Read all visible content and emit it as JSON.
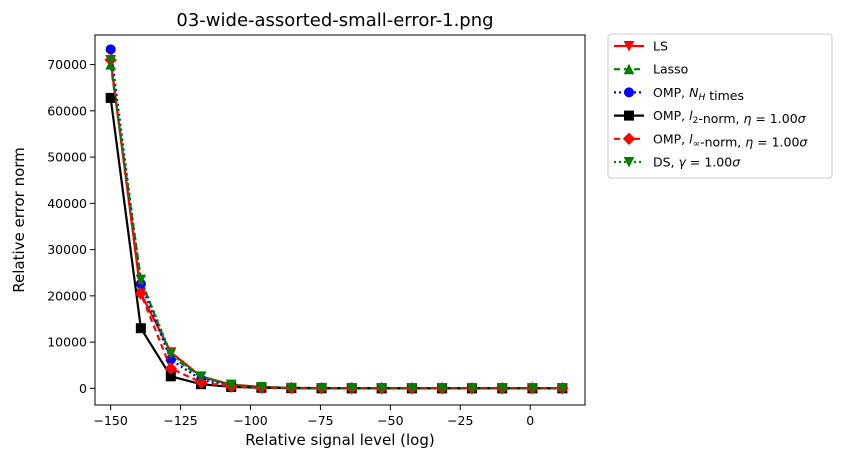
{
  "chart_data": {
    "type": "line",
    "title": "03-wide-assorted-small-error-1.png",
    "xlabel": "Relative signal level (log)",
    "ylabel": "Relative error norm",
    "xlim": [
      -155.6,
      19.6
    ],
    "ylim": [
      -3600,
      76400
    ],
    "xticks": [
      -150,
      -125,
      -100,
      -75,
      -50,
      -25,
      0
    ],
    "yticks": [
      0,
      10000,
      20000,
      30000,
      40000,
      50000,
      60000,
      70000
    ],
    "xtick_labels": [
      "−150",
      "−125",
      "−100",
      "−75",
      "−50",
      "−25",
      "0"
    ],
    "ytick_labels": [
      "0",
      "10000",
      "20000",
      "30000",
      "40000",
      "50000",
      "60000",
      "70000"
    ],
    "grid": false,
    "legend_position": "outside-upper-right",
    "x": [
      -150.0,
      -139.2,
      -128.5,
      -117.7,
      -106.9,
      -96.1,
      -85.4,
      -74.6,
      -63.8,
      -53.1,
      -42.3,
      -31.5,
      -20.8,
      -10.0,
      0.8,
      11.5
    ],
    "series": [
      {
        "name": "LS",
        "color": "#ff0000",
        "style": "solid",
        "marker": "triangle-down",
        "values": [
          71000,
          20500,
          7800,
          2600,
          800,
          300,
          100,
          50,
          30,
          20,
          10,
          10,
          10,
          10,
          10,
          10
        ]
      },
      {
        "name": "Lasso",
        "color": "#008000",
        "style": "dashed",
        "marker": "triangle-up",
        "values": [
          70000,
          23500,
          7000,
          2400,
          700,
          280,
          100,
          50,
          30,
          20,
          10,
          10,
          10,
          10,
          10,
          10
        ]
      },
      {
        "name": "OMP, N_H times",
        "color": "#0000ff",
        "style": "dotted",
        "marker": "circle",
        "values": [
          73300,
          22600,
          6200,
          1900,
          600,
          230,
          80,
          40,
          20,
          15,
          10,
          10,
          10,
          10,
          10,
          10
        ]
      },
      {
        "name": "OMP, l_2-norm, η = 1.00σ",
        "color": "#000000",
        "style": "solid",
        "marker": "square",
        "values": [
          62800,
          13000,
          2600,
          900,
          300,
          120,
          40,
          20,
          10,
          10,
          10,
          10,
          10,
          10,
          10,
          10
        ]
      },
      {
        "name": "OMP, l_∞-norm, η = 1.00σ",
        "color": "#ff0000",
        "style": "dashed",
        "marker": "diamond",
        "values": [
          71000,
          20500,
          4300,
          1300,
          400,
          150,
          60,
          30,
          20,
          10,
          10,
          10,
          10,
          10,
          10,
          10
        ]
      },
      {
        "name": "DS, γ = 1.00σ",
        "color": "#008000",
        "style": "dotted",
        "marker": "triangle-down",
        "values": [
          71000,
          23500,
          7500,
          2500,
          750,
          290,
          100,
          50,
          30,
          20,
          10,
          10,
          10,
          10,
          10,
          10
        ]
      }
    ]
  }
}
